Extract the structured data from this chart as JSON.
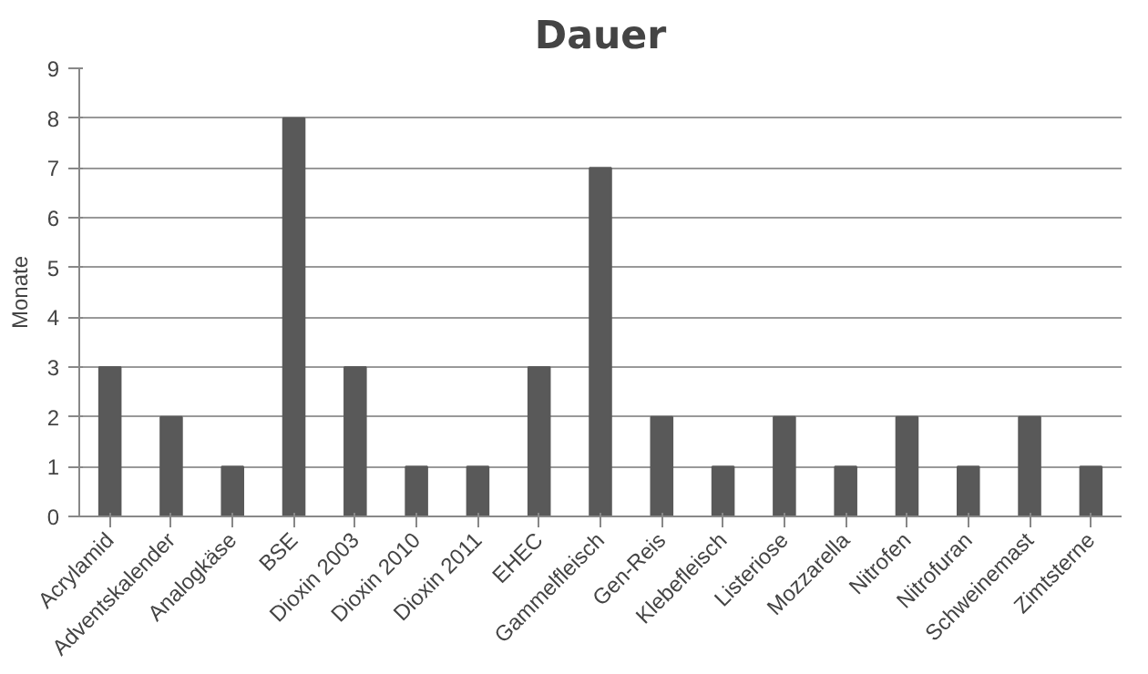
{
  "chart_data": {
    "type": "bar",
    "title": "Dauer",
    "ylabel": "Monate",
    "categories": [
      "Acrylamid",
      "Adventskalender",
      "Analogkäse",
      "BSE",
      "Dioxin 2003",
      "Dioxin 2010",
      "Dioxin 2011",
      "EHEC",
      "Gammelfleisch",
      "Gen-Reis",
      "Klebefleisch",
      "Listeriose",
      "Mozzarella",
      "Nitrofen",
      "Nitrofuran",
      "Schweinemast",
      "Zimtsterne"
    ],
    "values": [
      3,
      2,
      1,
      8,
      3,
      1,
      1,
      3,
      7,
      2,
      1,
      2,
      1,
      2,
      1,
      2,
      1
    ],
    "color": "#595959",
    "ylim": [
      0,
      9
    ],
    "yticks": [
      0,
      1,
      2,
      3,
      4,
      5,
      6,
      7,
      8,
      9
    ],
    "grid": "y"
  }
}
